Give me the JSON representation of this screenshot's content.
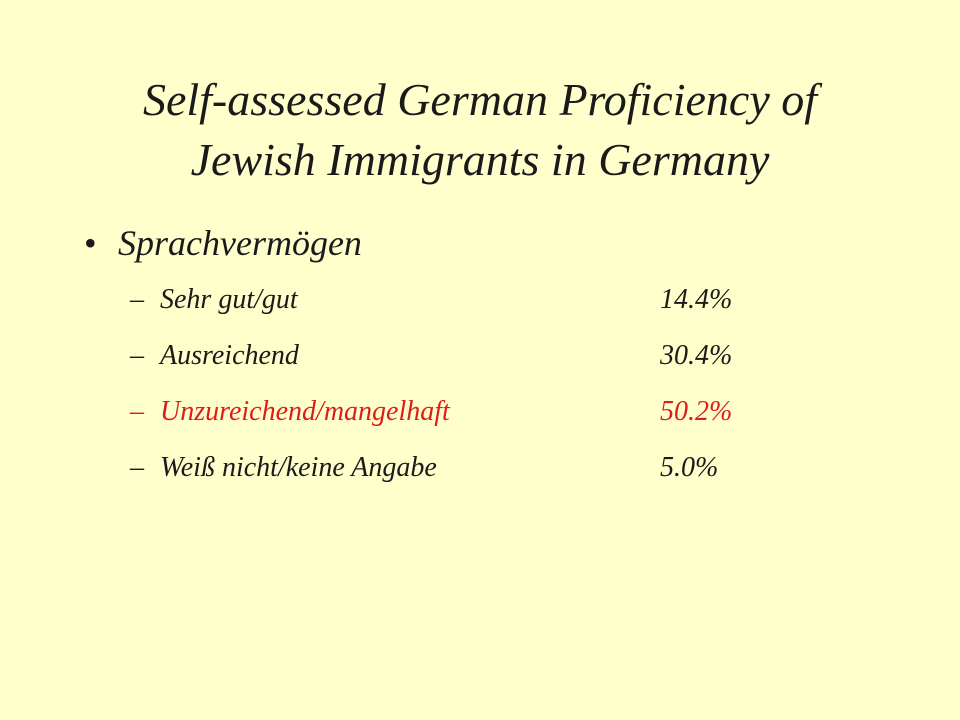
{
  "slide": {
    "title_line1": "Self-assessed German Proficiency of",
    "title_line2": "Jewish Immigrants in Germany",
    "bullet": "Sprachvermögen",
    "bullet_symbol": "•",
    "dash_symbol": "–",
    "items": [
      {
        "label": "Sehr gut/gut",
        "value": "14.4%"
      },
      {
        "label": "Ausreichend",
        "value": "30.4%"
      },
      {
        "label": "Unzureichend/mangelhaft",
        "value": "50.2%"
      },
      {
        "label": "Weiß nicht/keine Angabe",
        "value": "5.0%"
      }
    ],
    "colors": {
      "background": "#ffffcc",
      "text": "#1a1a1a",
      "highlight": "#dd1c1c"
    }
  }
}
